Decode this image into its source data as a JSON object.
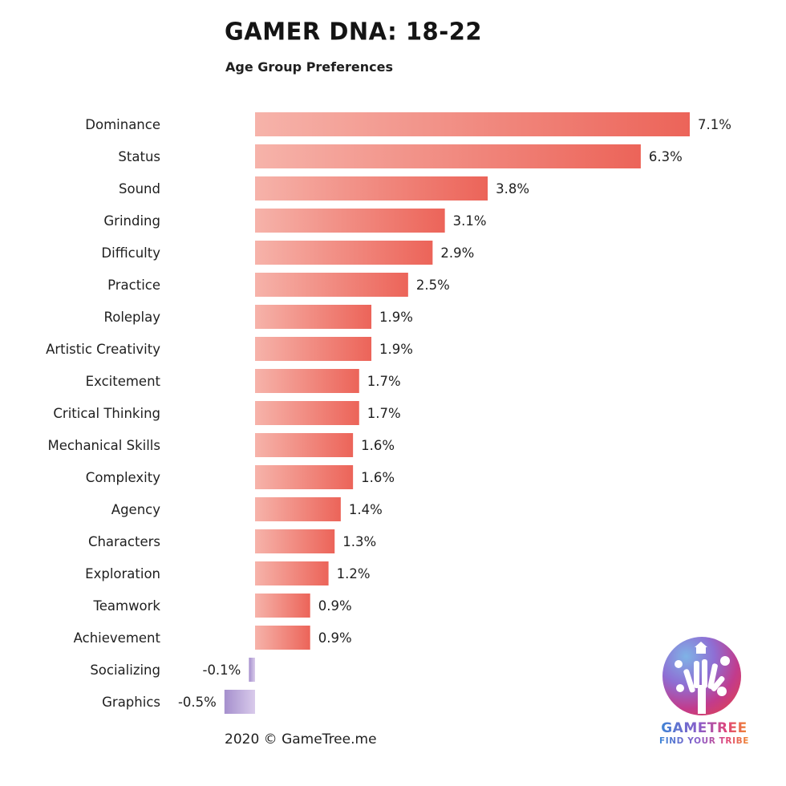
{
  "header": {
    "title": "GAMER DNA: 18-22",
    "subtitle": "Age Group Preferences"
  },
  "footer": {
    "copyright": "2020 © GameTree.me"
  },
  "logo": {
    "name": "GAMETREE",
    "tagline": "FIND YOUR TRIBE",
    "icon": "hand-tree-icon"
  },
  "colors": {
    "positive_light": "#f6b3aa",
    "positive_dark": "#ec6459",
    "negative_light": "#d9cbeb",
    "negative_dark": "#a58fcd"
  },
  "chart_data": {
    "type": "bar",
    "orientation": "horizontal",
    "title": "GAMER DNA: 18-22",
    "subtitle": "Age Group Preferences",
    "value_suffix": "%",
    "categories": [
      "Dominance",
      "Status",
      "Sound",
      "Grinding",
      "Difficulty",
      "Practice",
      "Roleplay",
      "Artistic Creativity",
      "Excitement",
      "Critical Thinking",
      "Mechanical Skills",
      "Complexity",
      "Agency",
      "Characters",
      "Exploration",
      "Teamwork",
      "Achievement",
      "Socializing",
      "Graphics"
    ],
    "values": [
      7.1,
      6.3,
      3.8,
      3.1,
      2.9,
      2.5,
      1.9,
      1.9,
      1.7,
      1.7,
      1.6,
      1.6,
      1.4,
      1.3,
      1.2,
      0.9,
      0.9,
      -0.1,
      -0.5
    ],
    "labels": [
      "7.1%",
      "6.3%",
      "3.8%",
      "3.1%",
      "2.9%",
      "2.5%",
      "1.9%",
      "1.9%",
      "1.7%",
      "1.7%",
      "1.6%",
      "1.6%",
      "1.4%",
      "1.3%",
      "1.2%",
      "0.9%",
      "0.9%",
      "-0.1%",
      "-0.5%"
    ],
    "xlim": [
      -0.5,
      7.1
    ],
    "grid": false,
    "legend": "none"
  }
}
